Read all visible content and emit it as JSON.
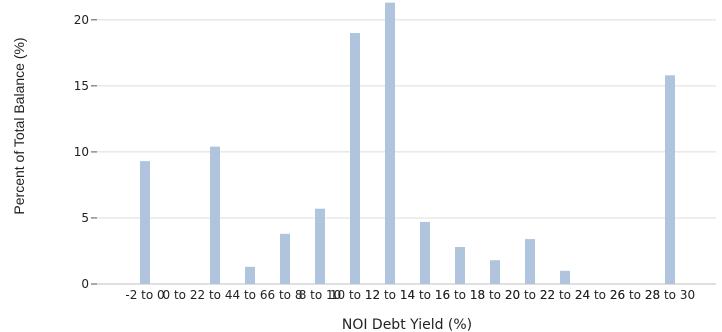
{
  "chart_data": {
    "type": "bar",
    "title": "",
    "xlabel": "NOI Debt Yield (%)",
    "ylabel": "Percent of Total Balance (%)",
    "ylim": [
      0,
      21.5
    ],
    "yticks": [
      0,
      5,
      10,
      15,
      20
    ],
    "grid": true,
    "bar_color": "#b0c4de",
    "categories": [
      "-2 to 0",
      "0 to 2",
      "2 to 4",
      "4 to 6",
      "6 to 8",
      "8 to 10",
      "10 to 12",
      "12 to 14",
      "14 to 16",
      "16 to 18",
      "18 to 20",
      "20 to 22",
      "22 to 24",
      "24 to 26",
      "26 to 28",
      "28 to 30"
    ],
    "values": [
      9.3,
      0,
      10.4,
      1.3,
      3.8,
      5.7,
      19.0,
      21.3,
      4.7,
      2.8,
      1.8,
      3.4,
      1.0,
      0,
      0,
      15.8
    ]
  }
}
